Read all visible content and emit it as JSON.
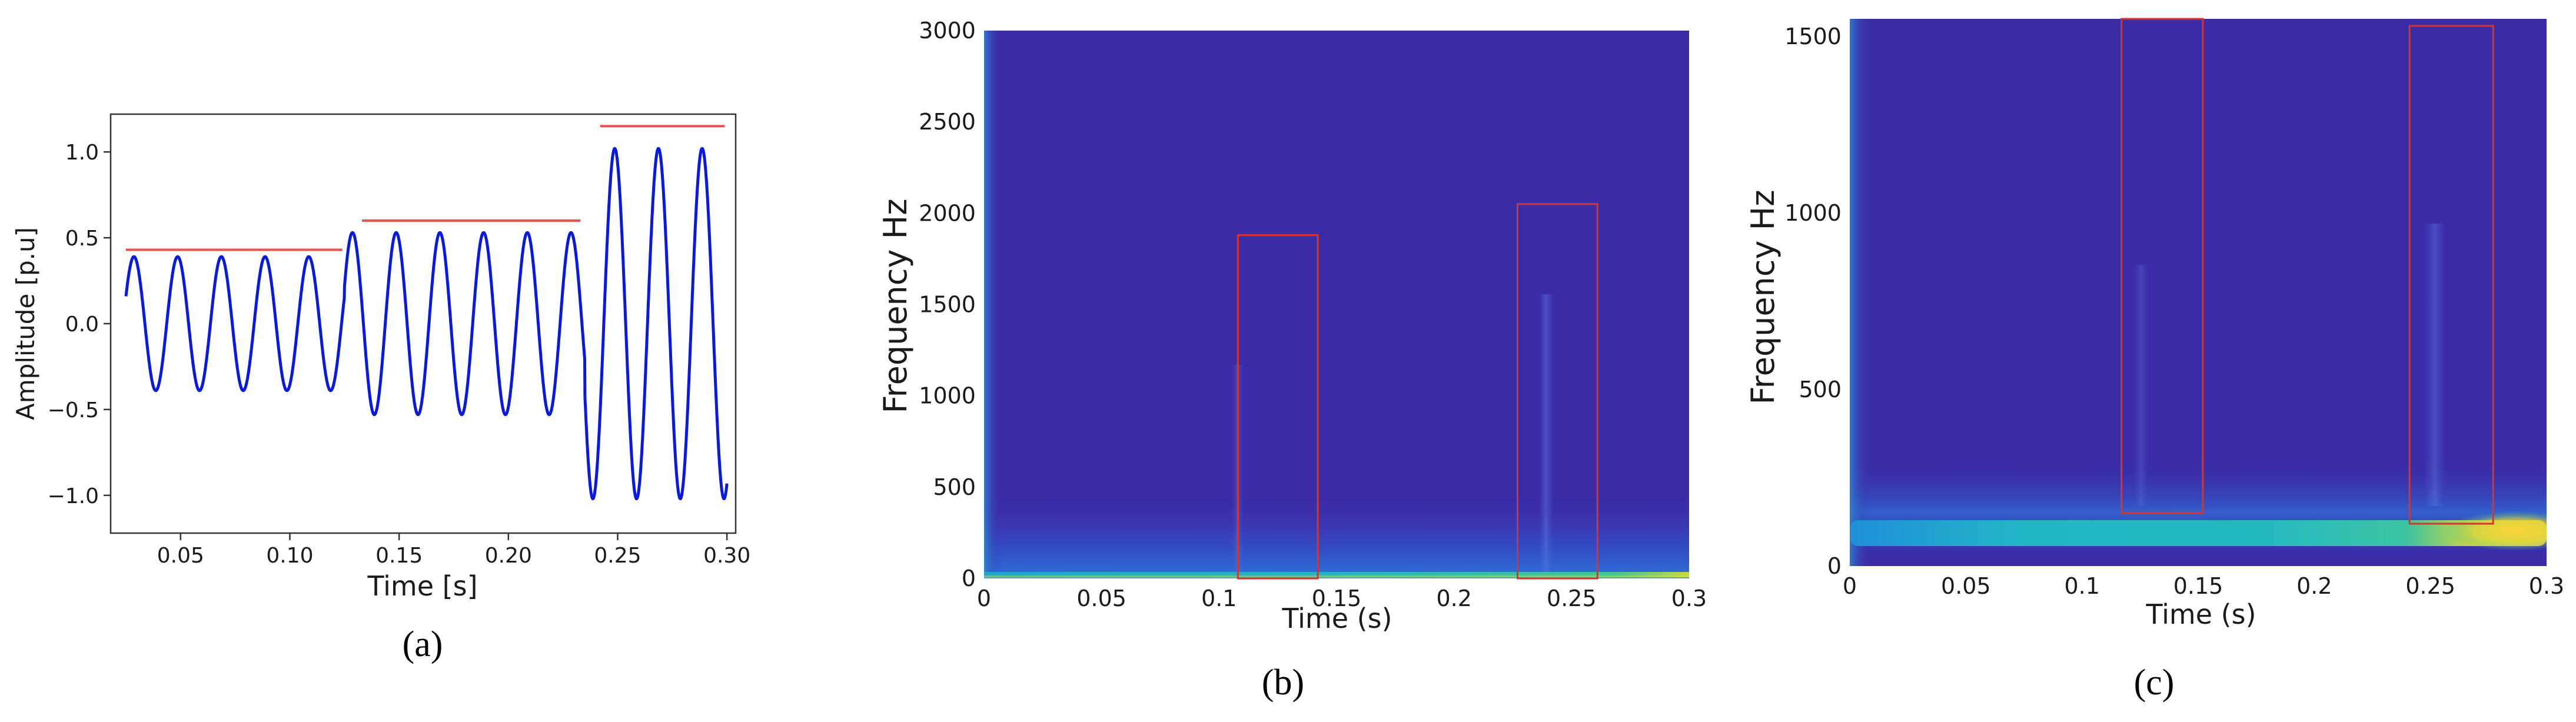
{
  "chart_data": [
    {
      "panel": "a",
      "caption": "(a)",
      "type": "line",
      "xlabel": "Time [s]",
      "ylabel": "Amplitude [p.u]",
      "xlim": [
        0.018,
        0.304
      ],
      "ylim": [
        -1.22,
        1.22
      ],
      "xticks": [
        "0.05",
        "0.10",
        "0.15",
        "0.20",
        "0.25",
        "0.30"
      ],
      "yticks": [
        "1.0",
        "0.5",
        "0.0",
        "−0.5",
        "−1.0"
      ],
      "colors": {
        "signal": "#0a18e6",
        "level": "#f24b4b"
      },
      "signal": {
        "frequency_hz": 50,
        "segments": [
          {
            "t_start": 0.025,
            "t_end": 0.125,
            "amplitude": 0.39
          },
          {
            "t_start": 0.125,
            "t_end": 0.235,
            "amplitude": 0.53
          },
          {
            "t_start": 0.235,
            "t_end": 0.3,
            "amplitude": 1.02
          }
        ]
      },
      "level_lines": [
        {
          "x_start": 0.025,
          "x_end": 0.124,
          "y": 0.43
        },
        {
          "x_start": 0.133,
          "x_end": 0.233,
          "y": 0.6
        },
        {
          "x_start": 0.242,
          "x_end": 0.299,
          "y": 1.15
        }
      ]
    },
    {
      "panel": "b",
      "caption": "(b)",
      "type": "heatmap",
      "xlabel": "Time (s)",
      "ylabel": "Frequency Hz",
      "xlim": [
        0,
        0.3
      ],
      "ylim": [
        0,
        3000
      ],
      "xticks": [
        "0",
        "0.05",
        "0.1",
        "0.15",
        "0.2",
        "0.25",
        "0.3"
      ],
      "yticks": [
        "3000",
        "2500",
        "2000",
        "1500",
        "1000",
        "500",
        "0"
      ],
      "colors": {
        "background": "#3b2ca6",
        "highlight_box": "#d9332e"
      },
      "highlight_boxes": [
        {
          "t_start": 0.108,
          "t_end": 0.142,
          "f_low": 0,
          "f_high": 1880
        },
        {
          "t_start": 0.227,
          "t_end": 0.261,
          "f_low": 0,
          "f_high": 2050
        }
      ]
    },
    {
      "panel": "c",
      "caption": "(c)",
      "type": "heatmap",
      "xlabel": "Time (s)",
      "ylabel": "Frequency Hz",
      "xlim": [
        0,
        0.3
      ],
      "ylim": [
        0,
        1550
      ],
      "xticks": [
        "0",
        "0.05",
        "0.1",
        "0.15",
        "0.2",
        "0.25",
        "0.3"
      ],
      "yticks": [
        "1500",
        "1000",
        "500",
        "0"
      ],
      "colors": {
        "background": "#3b2ca6",
        "highlight_box": "#d9332e"
      },
      "highlight_boxes": [
        {
          "t_start": 0.117,
          "t_end": 0.152,
          "f_low": 150,
          "f_high": 1550
        },
        {
          "t_start": 0.241,
          "t_end": 0.277,
          "f_low": 120,
          "f_high": 1530
        }
      ]
    }
  ]
}
